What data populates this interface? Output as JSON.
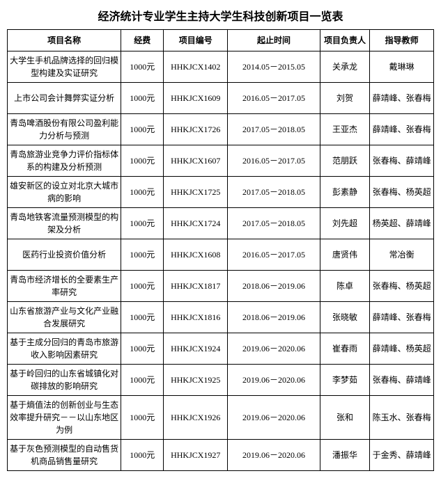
{
  "title": "经济统计专业学生主持大学生科技创新项目一览表",
  "columns": [
    "项目名称",
    "经费",
    "项目编号",
    "起止时间",
    "项目负责人",
    "指导教师"
  ],
  "rows": [
    {
      "name": "大学生手机品牌选择的回归模型构建及实证研究",
      "fund": "1000元",
      "code": "HHKJCX1402",
      "time": "2014.05－2015.05",
      "leader": "关承龙",
      "advisor": "戴琳琳"
    },
    {
      "name": "上市公司会计舞弊实证分析",
      "fund": "1000元",
      "code": "HHKJCX1609",
      "time": "2016.05－2017.05",
      "leader": "刘贺",
      "advisor": "薛靖峰、张春梅"
    },
    {
      "name": "青岛啤酒股份有限公司盈利能力分析与预测",
      "fund": "1000元",
      "code": "HHKJCX1726",
      "time": "2017.05－2018.05",
      "leader": "王亚杰",
      "advisor": "薛靖峰、张春梅"
    },
    {
      "name": "青岛旅游业竞争力评价指标体系的构建及分析预测",
      "fund": "1000元",
      "code": "HHKJCX1607",
      "time": "2016.05－2017.05",
      "leader": "范朋跃",
      "advisor": "张春梅、薛靖峰"
    },
    {
      "name": "雄安新区的设立对北京大城市病的影响",
      "fund": "1000元",
      "code": "HHKJCX1725",
      "time": "2017.05－2018.05",
      "leader": "彭素静",
      "advisor": "张春梅、杨英超"
    },
    {
      "name": "青岛地铁客流量预测模型的构架及分析",
      "fund": "1000元",
      "code": "HHKJCX1724",
      "time": "2017.05－2018.05",
      "leader": "刘先超",
      "advisor": "杨英超、薛靖峰"
    },
    {
      "name": "医药行业投资价值分析",
      "fund": "1000元",
      "code": "HHKJCX1608",
      "time": "2016.05－2017.05",
      "leader": "唐贤伟",
      "advisor": "常冶衡"
    },
    {
      "name": "青岛市经济增长的全要素生产率研究",
      "fund": "1000元",
      "code": "HHKJCX1817",
      "time": "2018.06－2019.06",
      "leader": "陈卓",
      "advisor": "张春梅、杨英超"
    },
    {
      "name": "山东省旅游产业与文化产业融合发展研究",
      "fund": "1000元",
      "code": "HHKJCX1816",
      "time": "2018.06－2019.06",
      "leader": "张晓敏",
      "advisor": "薛靖峰、张春梅"
    },
    {
      "name": "基于主成分回归的青岛市旅游收入影响因素研究",
      "fund": "1000元",
      "code": "HHKJCX1924",
      "time": "2019.06－2020.06",
      "leader": "崔春雨",
      "advisor": "薛靖峰、杨英超"
    },
    {
      "name": "基于岭回归的山东省城镇化对碳排放的影响研究",
      "fund": "1000元",
      "code": "HHKJCX1925",
      "time": "2019.06－2020.06",
      "leader": "李梦茹",
      "advisor": "张春梅、薛靖峰"
    },
    {
      "name": "基于熵值法的创新创业与生态效率提升研究－－以山东地区为例",
      "fund": "1000元",
      "code": "HHKJCX1926",
      "time": "2019.06－2020.06",
      "leader": "张和",
      "advisor": "陈玉水、张春梅"
    },
    {
      "name": "基于灰色预测模型的自动售货机商品销售量研究",
      "fund": "1000元",
      "code": "HHKJCX1927",
      "time": "2019.06－2020.06",
      "leader": "潘振华",
      "advisor": "于金秀、薛靖峰"
    }
  ]
}
